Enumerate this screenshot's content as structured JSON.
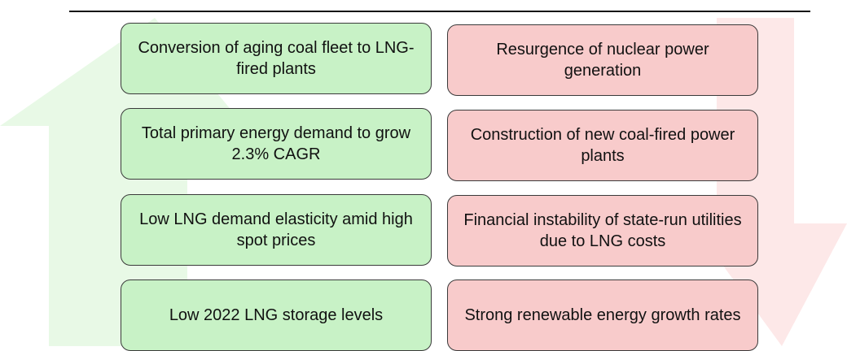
{
  "drivers": [
    "Conversion of aging coal fleet to LNG-fired plants",
    "Total primary energy demand to grow 2.3% CAGR",
    "Low LNG demand elasticity amid high spot prices",
    "Low 2022 LNG storage levels"
  ],
  "risks": [
    "Resurgence of nuclear power generation",
    "Construction of new coal-fired power plants",
    "Financial instability of state-run utilities due to LNG costs",
    "Strong renewable energy growth rates"
  ]
}
